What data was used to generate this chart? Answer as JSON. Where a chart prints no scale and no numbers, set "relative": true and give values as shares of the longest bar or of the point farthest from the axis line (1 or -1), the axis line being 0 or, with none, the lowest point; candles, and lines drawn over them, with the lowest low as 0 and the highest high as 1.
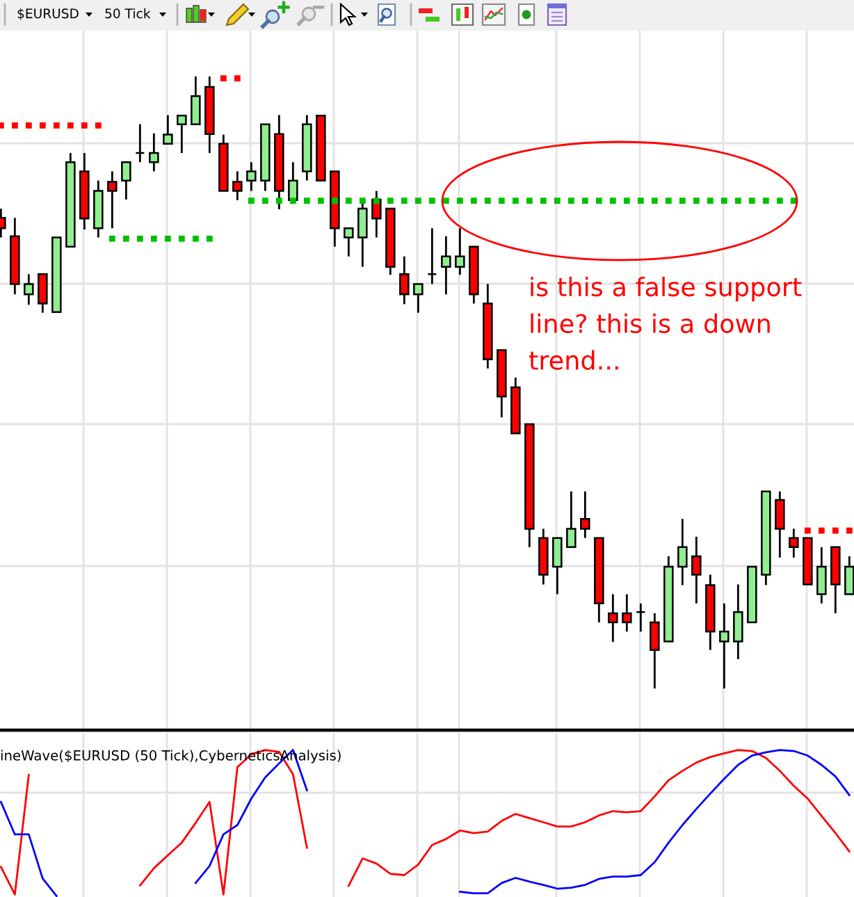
{
  "chart_data": [
    {
      "type": "candlestick",
      "relative": true,
      "grid": true,
      "categories": [
        null,
        null,
        null,
        null,
        null,
        null,
        null,
        null,
        null,
        null,
        null,
        null,
        null,
        null,
        null,
        null,
        null,
        null,
        null,
        null,
        null,
        null,
        null,
        null,
        null,
        null,
        null,
        null,
        null,
        null,
        null,
        null,
        null,
        null,
        null,
        null,
        null,
        null,
        null,
        null,
        null,
        null,
        null,
        null,
        null,
        null,
        null,
        null,
        null,
        null,
        null,
        null,
        null,
        null,
        null,
        null,
        null,
        null,
        null,
        null,
        null,
        null
      ],
      "ohlc": [
        [
          0.769,
          0.784,
          0.737,
          0.752
        ],
        [
          0.739,
          0.769,
          0.644,
          0.661
        ],
        [
          0.644,
          0.677,
          0.627,
          0.661
        ],
        [
          0.677,
          0.677,
          0.614,
          0.629
        ],
        [
          0.615,
          0.737,
          0.615,
          0.737
        ],
        [
          0.722,
          0.875,
          0.722,
          0.86
        ],
        [
          0.845,
          0.875,
          0.75,
          0.768
        ],
        [
          0.752,
          0.83,
          0.737,
          0.813
        ],
        [
          0.828,
          0.845,
          0.752,
          0.813
        ],
        [
          0.83,
          0.86,
          0.799,
          0.86
        ],
        [
          0.875,
          0.922,
          0.86,
          0.875
        ],
        [
          0.86,
          0.907,
          0.845,
          0.875
        ],
        [
          0.89,
          0.937,
          0.89,
          0.905
        ],
        [
          0.922,
          0.936,
          0.875,
          0.936
        ],
        [
          0.922,
          1,
          0.922,
          0.968
        ],
        [
          0.983,
          1,
          0.875,
          0.906
        ],
        [
          0.89,
          0.905,
          0.813,
          0.813
        ],
        [
          0.828,
          0.845,
          0.798,
          0.813
        ],
        [
          0.83,
          0.86,
          0.813,
          0.845
        ],
        [
          0.83,
          0.922,
          0.813,
          0.922
        ],
        [
          0.906,
          0.937,
          0.783,
          0.813
        ],
        [
          0.798,
          0.86,
          0.798,
          0.83
        ],
        [
          0.845,
          0.937,
          0.83,
          0.922
        ],
        [
          0.936,
          0.936,
          0.83,
          0.83
        ],
        [
          0.845,
          0.845,
          0.722,
          0.752
        ],
        [
          0.737,
          0.752,
          0.706,
          0.752
        ],
        [
          0.737,
          0.798,
          0.689,
          0.784
        ],
        [
          0.799,
          0.813,
          0.737,
          0.768
        ],
        [
          0.784,
          0.784,
          0.676,
          0.689
        ],
        [
          0.677,
          0.706,
          0.628,
          0.644
        ],
        [
          0.644,
          0.661,
          0.614,
          0.661
        ],
        [
          0.677,
          0.752,
          0.661,
          0.677
        ],
        [
          0.689,
          0.739,
          0.644,
          0.706
        ],
        [
          0.689,
          0.752,
          0.676,
          0.706
        ],
        [
          0.722,
          0.722,
          0.629,
          0.644
        ],
        [
          0.629,
          0.661,
          0.523,
          0.538
        ],
        [
          0.553,
          0.553,
          0.443,
          0.477
        ],
        [
          0.492,
          0.508,
          0.417,
          0.417
        ],
        [
          0.432,
          0.432,
          0.231,
          0.261
        ],
        [
          0.246,
          0.261,
          0.17,
          0.186
        ],
        [
          0.199,
          0.246,
          0.154,
          0.246
        ],
        [
          0.231,
          0.322,
          0.231,
          0.261
        ],
        [
          0.277,
          0.322,
          0.246,
          0.261
        ],
        [
          0.246,
          0.246,
          0.108,
          0.139
        ],
        [
          0.123,
          0.154,
          0.076,
          0.108
        ],
        [
          0.123,
          0.154,
          0.093,
          0.108
        ],
        [
          0.125,
          0.139,
          0.093,
          0.125
        ],
        [
          0.108,
          0.123,
          0,
          0.063
        ],
        [
          0.077,
          0.216,
          0.077,
          0.199
        ],
        [
          0.199,
          0.277,
          0.169,
          0.231
        ],
        [
          0.216,
          0.248,
          0.139,
          0.186
        ],
        [
          0.169,
          0.186,
          0.063,
          0.093
        ],
        [
          0.077,
          0.139,
          0,
          0.093
        ],
        [
          0.077,
          0.17,
          0.048,
          0.125
        ],
        [
          0.108,
          0.199,
          0.108,
          0.199
        ],
        [
          0.186,
          0.322,
          0.169,
          0.322
        ],
        [
          0.308,
          0.322,
          0.214,
          0.261
        ],
        [
          0.246,
          0.261,
          0.214,
          0.231
        ],
        [
          0.246,
          0.246,
          0.17,
          0.17
        ],
        [
          0.154,
          0.231,
          0.139,
          0.199
        ],
        [
          0.231,
          0.231,
          0.123,
          0.17
        ],
        [
          0.154,
          0.216,
          0.154,
          0.199
        ]
      ],
      "colors": [
        "#ff0000",
        "#ff0000",
        "#90ee90",
        "#ff0000",
        "#90ee90",
        "#90ee90",
        "#ff0000",
        "#90ee90",
        "#ff0000",
        "#90ee90",
        "#000000",
        "#90ee90",
        "#90ee90",
        "#90ee90",
        "#90ee90",
        "#ff0000",
        "#ff0000",
        "#ff0000",
        "#90ee90",
        "#90ee90",
        "#ff0000",
        "#90ee90",
        "#90ee90",
        "#ff0000",
        "#ff0000",
        "#90ee90",
        "#90ee90",
        "#ff0000",
        "#ff0000",
        "#ff0000",
        "#90ee90",
        "#000000",
        "#90ee90",
        "#90ee90",
        "#ff0000",
        "#ff0000",
        "#ff0000",
        "#ff0000",
        "#ff0000",
        "#ff0000",
        "#90ee90",
        "#90ee90",
        "#ff0000",
        "#ff0000",
        "#ff0000",
        "#ff0000",
        "#000000",
        "#ff0000",
        "#90ee90",
        "#90ee90",
        "#ff0000",
        "#ff0000",
        "#90ee90",
        "#90ee90",
        "#90ee90",
        "#90ee90",
        "#ff0000",
        "#ff0000",
        "#ff0000",
        "#90ee90",
        "#ff0000",
        "#90ee90"
      ],
      "series": [
        {
          "type": "scatter",
          "marker": "square",
          "color": "#ff0000",
          "values": [
            0.92,
            0.92,
            0.92,
            0.92,
            0.92,
            0.92,
            0.92,
            0.92,
            null,
            null,
            null,
            null,
            null,
            null,
            null,
            null,
            0.997,
            0.997,
            null,
            null,
            null,
            null,
            null,
            null,
            null,
            null,
            null,
            null,
            null,
            null,
            null,
            null,
            null,
            null,
            null,
            null,
            null,
            null,
            null,
            null,
            null,
            null,
            null,
            null,
            null,
            null,
            null,
            null,
            null,
            null,
            null,
            null,
            null,
            null,
            null,
            null,
            null,
            null,
            0.258,
            0.258,
            0.258,
            0.258
          ]
        },
        {
          "type": "scatter",
          "marker": "square",
          "color": "#00c000",
          "values": [
            null,
            null,
            null,
            null,
            null,
            null,
            null,
            null,
            0.735,
            0.735,
            0.735,
            0.735,
            0.735,
            0.735,
            0.735,
            0.735,
            null,
            null,
            0.797,
            0.797,
            0.797,
            0.797,
            0.797,
            0.797,
            0.797,
            0.797,
            0.797,
            0.797,
            0.797,
            0.797,
            0.797,
            0.797,
            0.797,
            0.797,
            0.797,
            0.797,
            0.797,
            0.797,
            0.797,
            0.797,
            0.797,
            0.797,
            0.797,
            0.797,
            0.797,
            0.797,
            0.797,
            0.797,
            0.797,
            0.797,
            0.797,
            0.797,
            0.797,
            0.797,
            0.797,
            0.797,
            0.797,
            0.797,
            null,
            null,
            null,
            null
          ]
        }
      ],
      "annotations": [
        "$EURUSD",
        "50 Tick",
        "is this a false support\nline? this is a down\ntrend..."
      ]
    },
    {
      "type": "line",
      "relative": true,
      "grid": true,
      "title": "ineWave($EURUSD (50 Tick),CyberneticsAnalysis)",
      "categories": [
        null,
        null,
        null,
        null,
        null,
        null,
        null,
        null,
        null,
        null,
        null,
        null,
        null,
        null,
        null,
        null,
        null,
        null,
        null,
        null,
        null,
        null,
        null,
        null,
        null,
        null,
        null,
        null,
        null,
        null,
        null,
        null,
        null,
        null,
        null,
        null,
        null,
        null,
        null,
        null,
        null,
        null,
        null,
        null,
        null,
        null,
        null,
        null,
        null,
        null,
        null,
        null,
        null,
        null,
        null,
        null,
        null,
        null,
        null,
        null,
        null,
        null
      ],
      "series": [
        {
          "color": "#ff0000",
          "values": [
            0.2,
            0.01,
            0.829,
            null,
            null,
            null,
            null,
            null,
            null,
            null,
            0.072,
            0.19,
            0.279,
            0.365,
            0.501,
            0.644,
            0.01,
            0.882,
            0.971,
            1,
            0.987,
            0.834,
            0.33,
            null,
            null,
            0.07,
            0.257,
            0.222,
            0.152,
            0.143,
            0.215,
            0.349,
            0.39,
            0.448,
            0.431,
            0.441,
            0.514,
            0.562,
            0.533,
            0.505,
            0.476,
            0.476,
            0.505,
            0.552,
            0.581,
            0.574,
            0.581,
            0.682,
            0.793,
            0.857,
            0.914,
            0.952,
            0.977,
            1,
            0.993,
            0.946,
            0.857,
            0.755,
            0.667,
            0.549,
            0.431,
            0.305
          ]
        },
        {
          "color": "#0000ff",
          "values": [
            0.644,
            0.422,
            0.422,
            0.12,
            0,
            null,
            null,
            null,
            null,
            null,
            null,
            null,
            null,
            null,
            0.089,
            0.206,
            0.422,
            0.486,
            0.667,
            0.812,
            0.908,
            1,
            0.724,
            null,
            null,
            null,
            null,
            null,
            null,
            null,
            null,
            null,
            null,
            0.029,
            0.019,
            0.019,
            0.089,
            0.124,
            0.098,
            0.076,
            0.05,
            0.057,
            0.076,
            0.117,
            0.133,
            0.133,
            0.143,
            0.231,
            0.365,
            0.486,
            0.596,
            0.701,
            0.803,
            0.898,
            0.962,
            0.984,
            1,
            0.993,
            0.962,
            0.898,
            0.819,
            0.691
          ]
        }
      ]
    }
  ]
}
